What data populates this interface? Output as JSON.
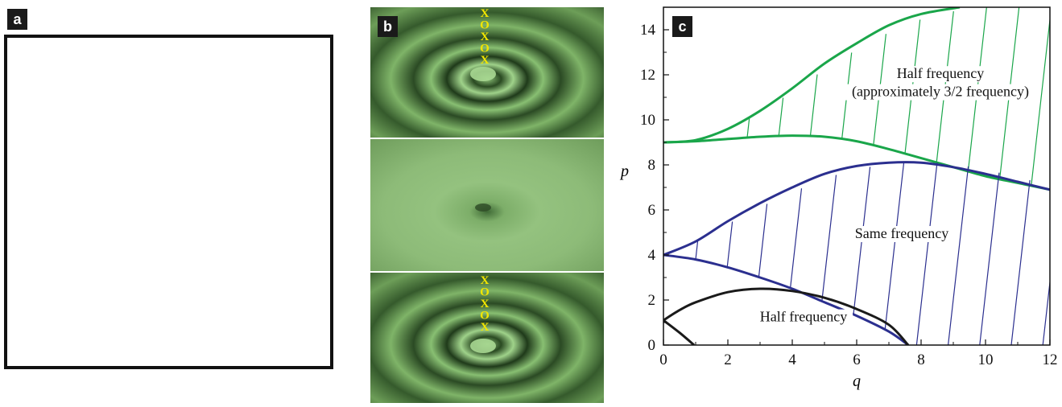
{
  "panels": {
    "a": {
      "label": "a"
    },
    "b": {
      "label": "b",
      "marker_letters_top": [
        "X",
        "O",
        "X",
        "O",
        "X"
      ],
      "marker_letters_bottom": [
        "X",
        "O",
        "X",
        "O",
        "X"
      ]
    },
    "c": {
      "label": "c"
    }
  },
  "colors": {
    "green": "#1aa64a",
    "blue": "#2b2f8f",
    "black": "#1a1a1a",
    "water": "#6fa85a",
    "marker": "#f2e600"
  },
  "chart_data": {
    "type": "line",
    "title": "",
    "xlabel": "q",
    "ylabel": "p",
    "xlim": [
      0,
      12
    ],
    "ylim": [
      0,
      15
    ],
    "x_ticks": [
      0,
      2,
      4,
      6,
      8,
      10,
      12
    ],
    "y_ticks": [
      0,
      2,
      4,
      6,
      8,
      10,
      12,
      14
    ],
    "regions": [
      {
        "color": "green",
        "labels": [
          "Half frequency",
          "(approximately 3/2 frequency)"
        ],
        "upper": [
          [
            0,
            9.0
          ],
          [
            1,
            9.1
          ],
          [
            2,
            9.6
          ],
          [
            3,
            10.4
          ],
          [
            4,
            11.4
          ],
          [
            5,
            12.5
          ],
          [
            6,
            13.4
          ],
          [
            7,
            14.2
          ],
          [
            8,
            14.7
          ],
          [
            9.2,
            15.0
          ]
        ],
        "lower": [
          [
            0,
            9.0
          ],
          [
            1,
            9.05
          ],
          [
            2,
            9.15
          ],
          [
            3,
            9.25
          ],
          [
            4,
            9.3
          ],
          [
            5,
            9.25
          ],
          [
            6,
            9.05
          ],
          [
            7,
            8.7
          ],
          [
            8,
            8.3
          ],
          [
            9,
            7.9
          ],
          [
            10,
            7.5
          ],
          [
            11,
            7.2
          ],
          [
            12,
            6.9
          ]
        ],
        "right": [
          [
            12,
            6.9
          ],
          [
            12,
            15.0
          ]
        ]
      },
      {
        "color": "blue",
        "labels": [
          "Same frequency"
        ],
        "upper": [
          [
            0,
            4.0
          ],
          [
            1,
            4.6
          ],
          [
            2,
            5.5
          ],
          [
            3,
            6.3
          ],
          [
            4,
            7.0
          ],
          [
            5,
            7.6
          ],
          [
            6,
            7.95
          ],
          [
            7,
            8.1
          ],
          [
            8,
            8.1
          ],
          [
            9,
            7.9
          ],
          [
            10,
            7.6
          ],
          [
            11,
            7.25
          ],
          [
            12,
            6.9
          ]
        ],
        "lower": [
          [
            0,
            4.0
          ],
          [
            1,
            3.8
          ],
          [
            2,
            3.45
          ],
          [
            3,
            3.0
          ],
          [
            4,
            2.5
          ],
          [
            5,
            1.9
          ],
          [
            6,
            1.3
          ],
          [
            7,
            0.6
          ],
          [
            7.6,
            0.0
          ]
        ],
        "right": [
          [
            12,
            0.0
          ],
          [
            12,
            6.9
          ]
        ]
      },
      {
        "color": "black",
        "labels": [
          "Half frequency"
        ],
        "upper": [
          [
            0,
            1.1
          ],
          [
            0.5,
            1.55
          ],
          [
            1,
            1.9
          ],
          [
            2,
            2.35
          ],
          [
            3,
            2.5
          ],
          [
            4,
            2.4
          ],
          [
            5,
            2.1
          ],
          [
            6,
            1.6
          ],
          [
            7,
            0.9
          ],
          [
            7.6,
            0.0
          ]
        ],
        "lower": [
          [
            0,
            1.1
          ],
          [
            0.5,
            0.55
          ],
          [
            0.95,
            0.0
          ]
        ]
      }
    ]
  }
}
